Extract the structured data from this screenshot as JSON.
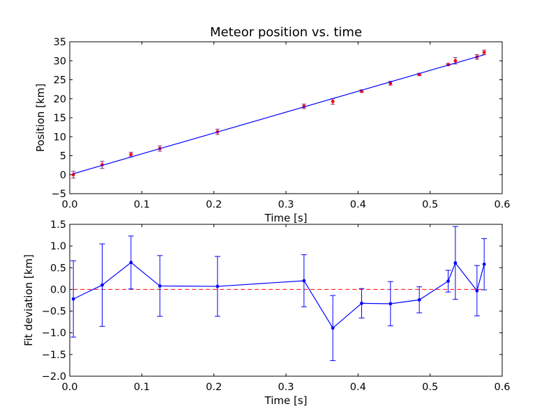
{
  "chart_data": [
    {
      "type": "scatter",
      "title": "Meteor position vs. time",
      "xlabel": "Time [s]",
      "ylabel": "Position [km]",
      "xlim": [
        0.0,
        0.6
      ],
      "ylim": [
        -5,
        35
      ],
      "xticks": [
        "0.0",
        "0.1",
        "0.2",
        "0.3",
        "0.4",
        "0.5",
        "0.6"
      ],
      "yticks": [
        "−5",
        "0",
        "5",
        "10",
        "15",
        "20",
        "25",
        "30",
        "35"
      ],
      "grid": false,
      "series": [
        {
          "kind": "points-with-error",
          "color": "#ff0000",
          "errorbar_color": "#7f2a7f",
          "x": [
            0.005,
            0.045,
            0.085,
            0.125,
            0.205,
            0.325,
            0.365,
            0.405,
            0.445,
            0.485,
            0.525,
            0.535,
            0.565,
            0.575
          ],
          "y": [
            0.0,
            2.6,
            5.3,
            6.9,
            11.3,
            18.0,
            19.3,
            22.0,
            24.1,
            26.4,
            29.0,
            30.0,
            31.0,
            32.2
          ],
          "yerr": [
            0.9,
            0.95,
            0.6,
            0.7,
            0.7,
            0.6,
            0.75,
            0.35,
            0.5,
            0.3,
            0.25,
            0.85,
            0.6,
            0.6
          ]
        },
        {
          "kind": "line",
          "color": "#0000ff",
          "x": [
            0.005,
            0.575
          ],
          "y": [
            0.25,
            31.6
          ]
        }
      ]
    },
    {
      "type": "line",
      "title": "",
      "xlabel": "Time [s]",
      "ylabel": "Fit deviation [km]",
      "xlim": [
        0.0,
        0.6
      ],
      "ylim": [
        -2.0,
        1.5
      ],
      "xticks": [
        "0.0",
        "0.1",
        "0.2",
        "0.3",
        "0.4",
        "0.5",
        "0.6"
      ],
      "yticks": [
        "−2.0",
        "−1.5",
        "−1.0",
        "−0.5",
        "0.0",
        "0.5",
        "1.0",
        "1.5"
      ],
      "grid": false,
      "reference_line": {
        "y": 0.0,
        "color": "#ff0000",
        "style": "dashed"
      },
      "series": [
        {
          "kind": "line-with-error",
          "color": "#0000ff",
          "x": [
            0.005,
            0.045,
            0.085,
            0.125,
            0.205,
            0.325,
            0.365,
            0.405,
            0.445,
            0.485,
            0.525,
            0.535,
            0.565,
            0.575
          ],
          "y": [
            -0.22,
            0.1,
            0.62,
            0.08,
            0.07,
            0.2,
            -0.89,
            -0.32,
            -0.33,
            -0.24,
            0.19,
            0.61,
            -0.03,
            0.58
          ],
          "yerr": [
            0.88,
            0.95,
            0.61,
            0.7,
            0.69,
            0.6,
            0.75,
            0.34,
            0.51,
            0.3,
            0.25,
            0.84,
            0.58,
            0.59
          ]
        }
      ]
    }
  ]
}
